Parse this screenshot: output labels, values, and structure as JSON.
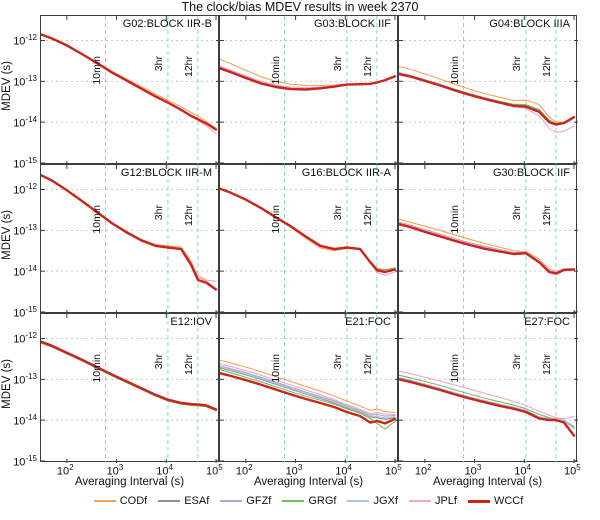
{
  "figure": {
    "title": "The clock/bias MDEV results in week 2370",
    "xlabel": "Averaging Interval (s)",
    "ylabel": "MDEV (s)"
  },
  "chart_data": {
    "type": "line",
    "title": "The clock/bias MDEV results in week 2370",
    "xlabel": "Averaging Interval (s)",
    "ylabel": "MDEV (s)",
    "x_scale": "log",
    "y_scale": "log",
    "grid": true,
    "legend_position": "bottom",
    "xlim_log10": [
      1.48,
      5.08
    ],
    "ylim_log10": [
      -15.05,
      -11.4
    ],
    "x_ticks_exp": [
      2,
      3,
      4,
      5
    ],
    "y_ticks_exp": [
      -12,
      -13,
      -14,
      -15
    ],
    "time_marks": [
      {
        "label": "10min",
        "log10_x": 2.778
      },
      {
        "label": "3hr",
        "log10_x": 4.033
      },
      {
        "label": "12hr",
        "log10_x": 4.635
      }
    ],
    "series_order": [
      "CODf",
      "ESAf",
      "GFZf",
      "GRGf",
      "JGXf",
      "JPLf",
      "WCCf"
    ],
    "colors": {
      "CODf": "#F2A45C",
      "ESAf": "#8F9489",
      "GFZf": "#AEA6CC",
      "GRGf": "#76BD63",
      "JGXf": "#A3C7E0",
      "JPLf": "#EFA6CF",
      "WCCf": "#C9251C"
    },
    "grid_colors": {
      "vline": "#8ED3CC",
      "hline": "#c9c9c9",
      "frame": "#3d3d3d"
    },
    "log10_x": [
      1.48,
      1.7,
      2.0,
      2.3,
      2.6,
      2.9,
      3.2,
      3.5,
      3.78,
      4.03,
      4.3,
      4.5,
      4.64,
      4.8,
      5.0
    ],
    "panels": [
      {
        "title": "G02:BLOCK IIR-B",
        "base": [
          -11.85,
          -11.95,
          -12.12,
          -12.33,
          -12.55,
          -12.78,
          -12.98,
          -13.18,
          -13.37,
          -13.52,
          -13.7,
          -13.85,
          -13.93,
          -14.03,
          -14.18
        ],
        "overrides": {
          "CODf": {
            "dy": [
              0,
              0,
              0,
              0.01,
              0.02,
              0.03,
              0.04,
              0.05,
              0.06,
              0.06,
              0.07,
              0.08,
              0.08,
              0.05,
              0.03
            ]
          },
          "GRGf": {
            "dy": [
              0.01,
              0.01,
              0.01,
              0.01,
              0.01,
              0.01,
              0.01,
              0.01,
              0.01,
              0.01,
              0.01,
              0.01,
              0.01,
              0.01,
              0.01
            ]
          },
          "JPLf": {
            "dy": [
              0,
              0,
              0,
              0,
              0,
              0,
              0,
              0,
              0,
              0,
              0,
              0,
              -0.03,
              -0.06,
              -0.1
            ]
          }
        }
      },
      {
        "title": "G03:BLOCK IIF",
        "base": [
          -12.68,
          -12.78,
          -12.92,
          -13.05,
          -13.14,
          -13.19,
          -13.2,
          -13.17,
          -13.13,
          -13.08,
          -13.07,
          -13.06,
          -13.03,
          -12.97,
          -12.88
        ],
        "overrides": {
          "CODf": {
            "dy": [
              0.22,
              0.21,
              0.19,
              0.16,
              0.14,
              0.12,
              0.1,
              0.07,
              0.04,
              0.01,
              0,
              0,
              0,
              0,
              0
            ]
          },
          "GFZf": {
            "dy": [
              0.03,
              0.03,
              0.03,
              0.03,
              0.03,
              0.02,
              0.02,
              0.01,
              0.01,
              0,
              0,
              0,
              0,
              0,
              0
            ]
          },
          "JPLf": {
            "dy": [
              0.05,
              0.05,
              0.05,
              0.05,
              0.05,
              0.05,
              0.04,
              0.03,
              0.02,
              0.01,
              0,
              0,
              0,
              0,
              0
            ]
          }
        }
      },
      {
        "title": "G04:BLOCK IIIA",
        "base": [
          -12.82,
          -12.88,
          -12.99,
          -13.1,
          -13.22,
          -13.33,
          -13.43,
          -13.52,
          -13.6,
          -13.62,
          -13.75,
          -14.0,
          -14.06,
          -14.02,
          -13.88
        ],
        "overrides": {
          "CODf": {
            "dy": [
              0.18,
              0.18,
              0.17,
              0.16,
              0.15,
              0.14,
              0.13,
              0.13,
              0.13,
              0.16,
              0.18,
              0.12,
              0.06,
              0.02,
              0.01
            ]
          },
          "GRGf": {
            "dy": [
              0.02,
              0.02,
              0.02,
              0.02,
              0.02,
              0.02,
              0.02,
              0.03,
              0.04,
              0.05,
              0.06,
              0.05,
              0.03,
              0.02,
              0.02
            ]
          },
          "GFZf": {
            "dy": [
              0.03,
              0.03,
              0.03,
              0.03,
              0.03,
              0.03,
              0.03,
              0.03,
              0.03,
              0.04,
              0.04,
              0.03,
              0.02,
              0.01,
              0.01
            ]
          },
          "JPLf": {
            "y": [
              -12.8,
              -12.86,
              -12.97,
              -13.09,
              -13.21,
              -13.33,
              -13.44,
              -13.54,
              -13.62,
              -13.66,
              -13.85,
              -14.15,
              -14.25,
              -14.22,
              -14.1
            ]
          }
        }
      },
      {
        "title": "G12:BLOCK IIR-M",
        "base": [
          -11.65,
          -11.78,
          -12.02,
          -12.28,
          -12.55,
          -12.82,
          -13.05,
          -13.25,
          -13.38,
          -13.42,
          -13.46,
          -13.85,
          -14.22,
          -14.28,
          -14.45
        ],
        "overrides": {
          "CODf": {
            "dy": [
              0,
              0,
              0,
              0,
              0.01,
              0.02,
              0.03,
              0.03,
              0.03,
              0.04,
              0.05,
              0.09,
              0.07,
              0.04,
              0.02
            ]
          },
          "JPLf": {
            "y": [
              -11.65,
              -11.78,
              -12.02,
              -12.28,
              -12.55,
              -12.82,
              -13.05,
              -13.25,
              -13.38,
              -13.42,
              -13.45,
              -13.8,
              -14.1,
              -14.22,
              -14.25
            ]
          }
        }
      },
      {
        "title": "G16:BLOCK IIR-A",
        "base": [
          -11.98,
          -12.08,
          -12.25,
          -12.45,
          -12.68,
          -12.9,
          -13.15,
          -13.38,
          -13.46,
          -13.42,
          -13.46,
          -13.78,
          -13.98,
          -14.02,
          -13.96
        ],
        "overrides": {
          "CODf": {
            "dy": [
              0,
              0,
              0,
              0,
              -0.01,
              -0.02,
              -0.04,
              -0.05,
              -0.04,
              -0.02,
              0,
              0.02,
              0.05,
              0.06,
              0.03
            ]
          },
          "GRGf": {
            "dy": [
              0,
              0,
              0,
              0,
              0,
              0,
              0,
              0,
              0,
              0,
              0,
              0.01,
              0.03,
              0.05,
              0.04
            ]
          },
          "JPLf": {
            "dy": [
              0,
              0,
              0,
              0,
              0,
              0,
              0,
              0,
              0,
              0,
              0,
              0,
              -0.05,
              -0.08,
              -0.06
            ]
          }
        }
      },
      {
        "title": "G30:BLOCK IIF",
        "base": [
          -12.85,
          -12.92,
          -13.04,
          -13.15,
          -13.26,
          -13.36,
          -13.45,
          -13.52,
          -13.58,
          -13.56,
          -13.78,
          -14.02,
          -14.06,
          -13.97,
          -13.96
        ],
        "overrides": {
          "CODf": {
            "y": [
              -12.73,
              -12.8,
              -12.9,
              -13.0,
              -13.11,
              -13.22,
              -13.32,
              -13.41,
              -13.5,
              -13.52,
              -13.7,
              -13.95,
              -14.0,
              -13.95,
              -13.95
            ]
          },
          "ESAf": {
            "dy": [
              0.04,
              0.04,
              0.05,
              0.05,
              0.05,
              0.05,
              0.05,
              0.04,
              0.03,
              0.02,
              0.02,
              0.03,
              0.03,
              0.02,
              0.01
            ]
          },
          "GFZf": {
            "dy": [
              0.05,
              0.05,
              0.06,
              0.06,
              0.06,
              0.06,
              0.06,
              0.05,
              0.04,
              0.02,
              0.02,
              0.04,
              0.04,
              0.02,
              0.01
            ]
          },
          "GRGf": {
            "dy": [
              0.02,
              0.02,
              0.02,
              0.02,
              0.02,
              0.02,
              0.02,
              0.02,
              0.01,
              0.01,
              0.01,
              0.02,
              0.02,
              0.01,
              0.01
            ]
          },
          "JGXf": {
            "dy": [
              0.03,
              0.03,
              0.03,
              0.03,
              0.03,
              0.03,
              0.03,
              0.03,
              0.02,
              0.01,
              0.01,
              0.02,
              0.02,
              0.01,
              0.01
            ]
          },
          "JPLf": {
            "dy": [
              0.04,
              0.04,
              0.04,
              0.04,
              0.04,
              0.04,
              0.04,
              0.03,
              0.02,
              0.01,
              0.02,
              0.05,
              0.05,
              0.03,
              0.02
            ]
          }
        }
      },
      {
        "title": "E12:IOV",
        "base": [
          -12.08,
          -12.18,
          -12.35,
          -12.52,
          -12.7,
          -12.88,
          -13.05,
          -13.22,
          -13.38,
          -13.5,
          -13.58,
          -13.61,
          -13.62,
          -13.64,
          -13.74
        ],
        "overrides": {
          "CODf": {
            "dy": [
              0.02,
              0.02,
              0.02,
              0.02,
              0.02,
              0.02,
              0.02,
              0.02,
              0.02,
              0.02,
              0.02,
              0.02,
              0.02,
              0.02,
              0.02
            ]
          },
          "ESAf": {
            "dy": [
              -0.02,
              -0.02,
              -0.02,
              -0.02,
              -0.02,
              -0.02,
              -0.02,
              -0.02,
              -0.02,
              -0.02,
              -0.02,
              -0.02,
              -0.02,
              -0.02,
              -0.02
            ]
          },
          "GRGf": {
            "dy": [
              -0.03,
              -0.03,
              -0.03,
              -0.03,
              -0.03,
              -0.03,
              -0.03,
              -0.03,
              -0.03,
              -0.03,
              -0.03,
              -0.03,
              -0.03,
              -0.03,
              -0.03
            ]
          },
          "JGXf": {
            "dy": [
              -0.01,
              -0.01,
              -0.01,
              -0.01,
              -0.01,
              -0.01,
              -0.01,
              -0.01,
              -0.01,
              -0.01,
              -0.01,
              -0.01,
              -0.01,
              -0.01,
              -0.01
            ]
          },
          "JPLf": {
            "dy": [
              0.02,
              0.02,
              0.02,
              0.02,
              0.02,
              0.02,
              0.02,
              0.02,
              0.02,
              0.02,
              0.02,
              0.02,
              0.02,
              0.02,
              0.02
            ]
          }
        }
      },
      {
        "title": "E21:FOC",
        "base": [
          -12.85,
          -12.92,
          -13.02,
          -13.13,
          -13.25,
          -13.37,
          -13.48,
          -13.58,
          -13.68,
          -13.8,
          -13.9,
          -14.06,
          -14.02,
          -14.08,
          -13.97
        ],
        "overrides": {
          "CODf": {
            "y": [
              -12.53,
              -12.6,
              -12.7,
              -12.81,
              -12.93,
              -13.05,
              -13.17,
              -13.29,
              -13.41,
              -13.53,
              -13.66,
              -13.76,
              -13.73,
              -13.79,
              -13.81
            ]
          },
          "ESAf": {
            "y": [
              -12.72,
              -12.79,
              -12.89,
              -13.0,
              -13.12,
              -13.24,
              -13.36,
              -13.47,
              -13.58,
              -13.7,
              -13.81,
              -13.92,
              -13.94,
              -13.98,
              -13.94
            ]
          },
          "GFZf": {
            "y": [
              -12.67,
              -12.74,
              -12.84,
              -12.95,
              -13.07,
              -13.19,
              -13.31,
              -13.42,
              -13.53,
              -13.65,
              -13.77,
              -13.87,
              -13.86,
              -13.9,
              -13.89
            ]
          },
          "GRGf": {
            "y": [
              -12.76,
              -12.84,
              -12.95,
              -13.06,
              -13.18,
              -13.3,
              -13.41,
              -13.51,
              -13.61,
              -13.72,
              -13.83,
              -13.96,
              -14.08,
              -14.22,
              -14.03
            ]
          },
          "JGXf": {
            "y": [
              -12.7,
              -12.77,
              -12.87,
              -12.98,
              -13.1,
              -13.22,
              -13.34,
              -13.45,
              -13.56,
              -13.68,
              -13.79,
              -13.9,
              -13.91,
              -13.95,
              -13.92
            ]
          },
          "JPLf": {
            "y": [
              -12.62,
              -12.69,
              -12.79,
              -12.9,
              -13.02,
              -13.14,
              -13.26,
              -13.38,
              -13.5,
              -13.62,
              -13.74,
              -13.84,
              -13.81,
              -13.85,
              -13.86
            ]
          }
        }
      },
      {
        "title": "E27:FOC",
        "base": [
          -13.0,
          -13.06,
          -13.16,
          -13.26,
          -13.37,
          -13.47,
          -13.56,
          -13.65,
          -13.72,
          -13.8,
          -13.96,
          -14.0,
          -14.0,
          -14.06,
          -14.38
        ],
        "overrides": {
          "CODf": {
            "dy": [
              0.03,
              0.03,
              0.03,
              0.03,
              0.03,
              0.03,
              0.03,
              0.03,
              0.03,
              0.03,
              0.03,
              0.03,
              0.03,
              0.05,
              0.2
            ]
          },
          "ESAf": {
            "dy": [
              0.02,
              0.02,
              0.02,
              0.02,
              0.02,
              0.02,
              0.02,
              0.02,
              0.02,
              0.02,
              0.02,
              0.02,
              0.02,
              0.04,
              0.18
            ]
          },
          "GFZf": {
            "dy": [
              0.04,
              0.04,
              0.04,
              0.04,
              0.04,
              0.04,
              0.04,
              0.04,
              0.04,
              0.04,
              0.04,
              0.04,
              0.04,
              0.06,
              0.22
            ]
          },
          "JGXf": {
            "dy": [
              0.03,
              0.03,
              0.03,
              0.03,
              0.03,
              0.03,
              0.03,
              0.03,
              0.03,
              0.03,
              0.03,
              0.03,
              0.03,
              0.05,
              0.19
            ]
          },
          "GRGf": {
            "y": [
              -12.9,
              -12.96,
              -13.05,
              -13.15,
              -13.26,
              -13.36,
              -13.46,
              -13.55,
              -13.63,
              -13.72,
              -13.86,
              -13.94,
              -13.97,
              -14.02,
              -14.16
            ]
          },
          "JPLf": {
            "y": [
              -12.8,
              -12.86,
              -12.95,
              -13.04,
              -13.14,
              -13.24,
              -13.34,
              -13.44,
              -13.54,
              -13.64,
              -13.78,
              -13.88,
              -13.94,
              -13.97,
              -13.91
            ]
          }
        }
      }
    ]
  }
}
